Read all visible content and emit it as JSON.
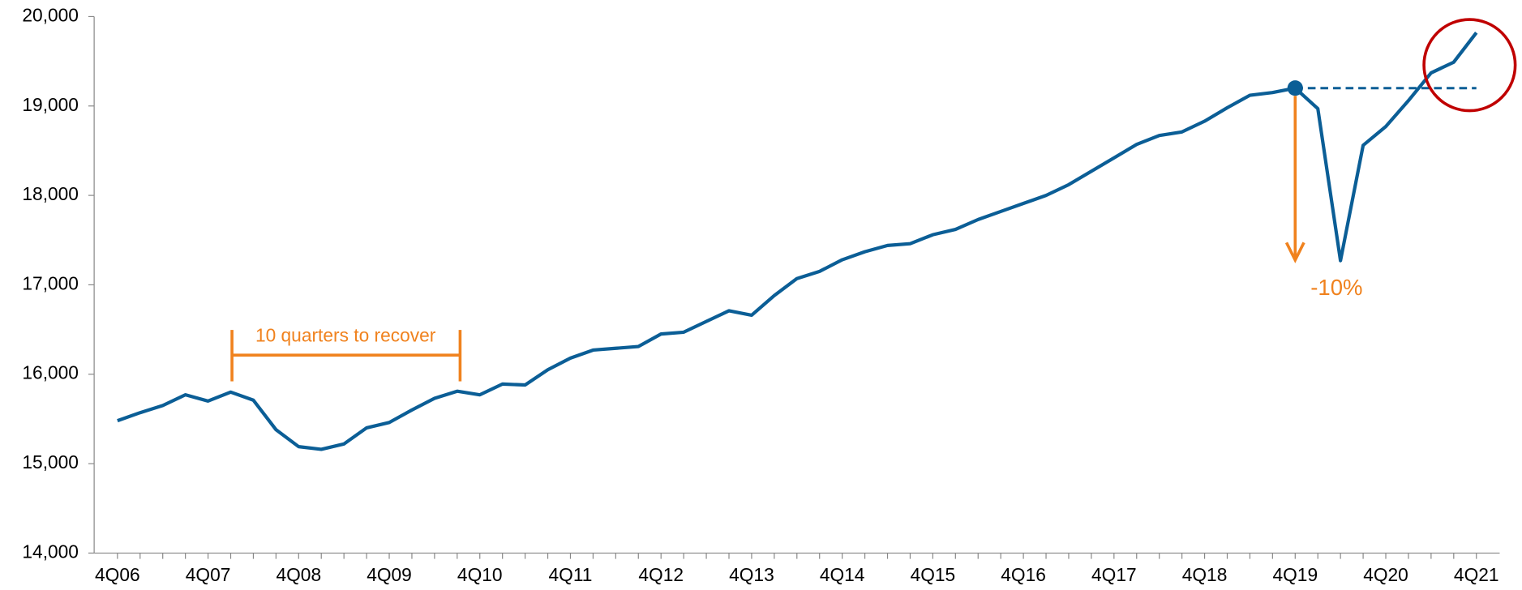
{
  "chart_data": {
    "type": "line",
    "categories": [
      "4Q06",
      null,
      null,
      null,
      "4Q07",
      null,
      null,
      null,
      "4Q08",
      null,
      null,
      null,
      "4Q09",
      null,
      null,
      null,
      "4Q10",
      null,
      null,
      null,
      "4Q11",
      null,
      null,
      null,
      "4Q12",
      null,
      null,
      null,
      "4Q13",
      null,
      null,
      null,
      "4Q14",
      null,
      null,
      null,
      "4Q15",
      null,
      null,
      null,
      "4Q16",
      null,
      null,
      null,
      "4Q17",
      null,
      null,
      null,
      "4Q18",
      null,
      null,
      null,
      "4Q19",
      null,
      null,
      null,
      "4Q20",
      null,
      null,
      null,
      "4Q21"
    ],
    "series": [
      {
        "color": "#0b5e96",
        "values": [
          15480,
          15570,
          15650,
          15770,
          15700,
          15800,
          15710,
          15380,
          15190,
          15160,
          15220,
          15400,
          15460,
          15600,
          15730,
          15810,
          15770,
          15890,
          15880,
          16050,
          16180,
          16270,
          16290,
          16310,
          16450,
          16470,
          16590,
          16710,
          16660,
          16880,
          17070,
          17150,
          17280,
          17370,
          17440,
          17460,
          17560,
          17620,
          17730,
          17820,
          17910,
          18000,
          18120,
          18270,
          18420,
          18570,
          18670,
          18710,
          18830,
          18980,
          19120,
          19150,
          19200,
          18970,
          17270,
          18560,
          18770,
          19060,
          19370,
          19490,
          19820
        ]
      }
    ],
    "ylim": [
      14000,
      20000
    ],
    "yticks": [
      {
        "value": 14000,
        "label": "14,000"
      },
      {
        "value": 15000,
        "label": "15,000"
      },
      {
        "value": 16000,
        "label": "16,000"
      },
      {
        "value": 17000,
        "label": "17,000"
      },
      {
        "value": 18000,
        "label": "18,000"
      },
      {
        "value": 19000,
        "label": "19,000"
      },
      {
        "value": 20000,
        "label": "20,000"
      }
    ],
    "annotations": {
      "recovery": "10 quarters to recover",
      "drop": "-10%"
    },
    "annotation_color": "#f0821e",
    "highlight_color": "#c00000"
  }
}
